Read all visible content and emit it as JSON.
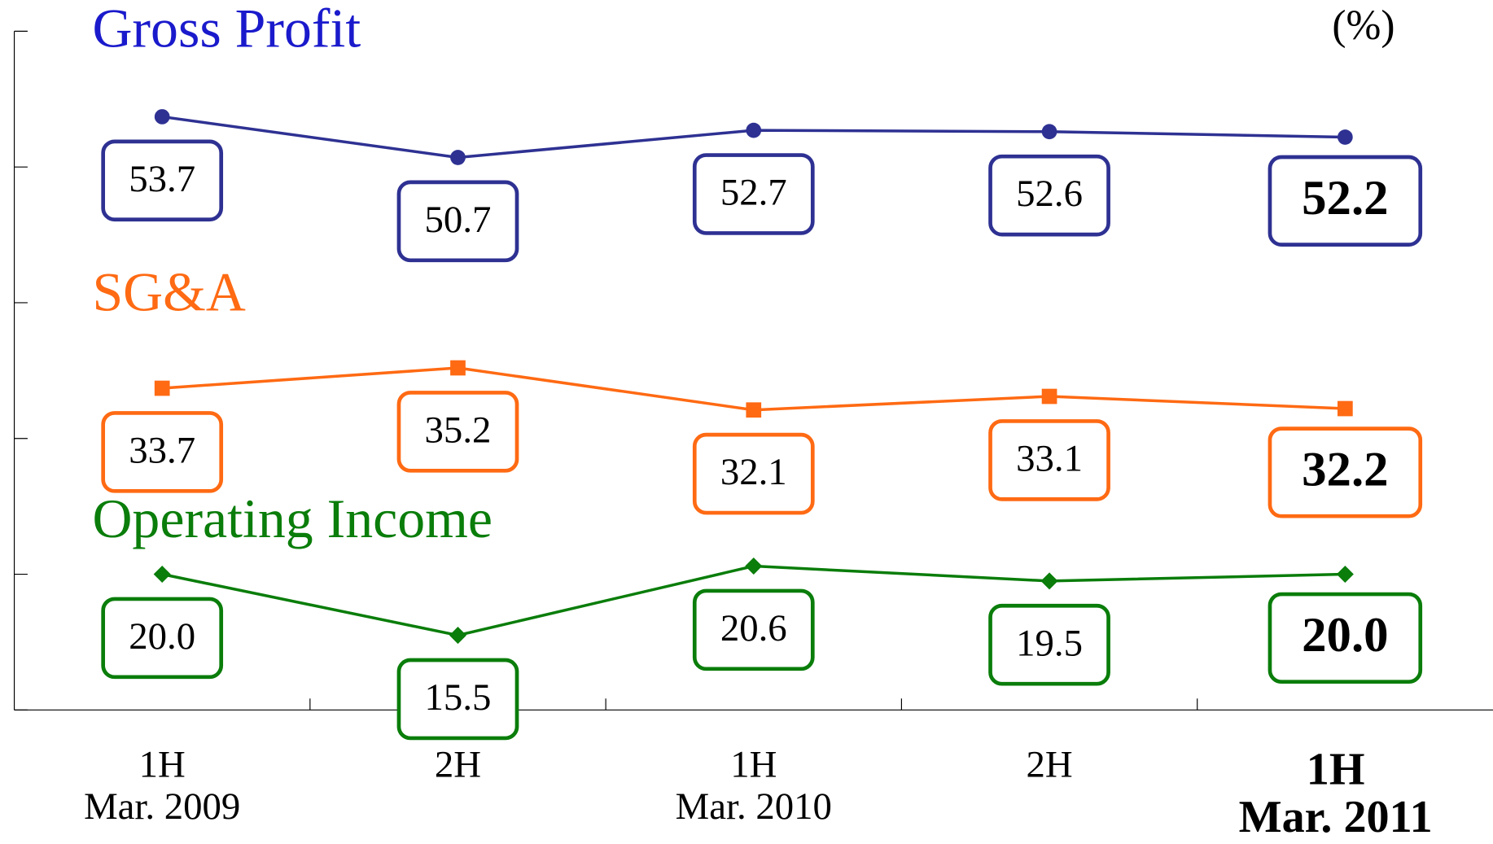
{
  "chart_data": {
    "type": "line",
    "unit_label": "(%)",
    "categories": [
      [
        "1H",
        "Mar. 2009"
      ],
      [
        "2H"
      ],
      [
        "1H",
        "Mar. 2010"
      ],
      [
        "2H"
      ],
      [
        "1H",
        "Mar. 2011"
      ]
    ],
    "ylim": [
      10,
      60
    ],
    "yticks": [
      10,
      20,
      30,
      40,
      50,
      60
    ],
    "series": [
      {
        "name": "Gross Profit",
        "color": "#2e3192",
        "label_color": "#1a1acc",
        "marker": "circle",
        "values": [
          53.7,
          50.7,
          52.7,
          52.6,
          52.2
        ],
        "value_labels": [
          "53.7",
          "50.7",
          "52.7",
          "52.6",
          "52.2"
        ]
      },
      {
        "name": "SG&A",
        "color": "#ff6a13",
        "label_color": "#ff6a13",
        "marker": "square",
        "values": [
          33.7,
          35.2,
          32.1,
          33.1,
          32.2
        ],
        "value_labels": [
          "33.7",
          "35.2",
          "32.1",
          "33.1",
          "32.2"
        ]
      },
      {
        "name": "Operating Income",
        "color": "#0a7d0a",
        "label_color": "#0a7d0a",
        "marker": "diamond",
        "values": [
          20.0,
          15.5,
          20.6,
          19.5,
          20.0
        ],
        "value_labels": [
          "20.0",
          "15.5",
          "20.6",
          "19.5",
          "20.0"
        ]
      }
    ]
  }
}
